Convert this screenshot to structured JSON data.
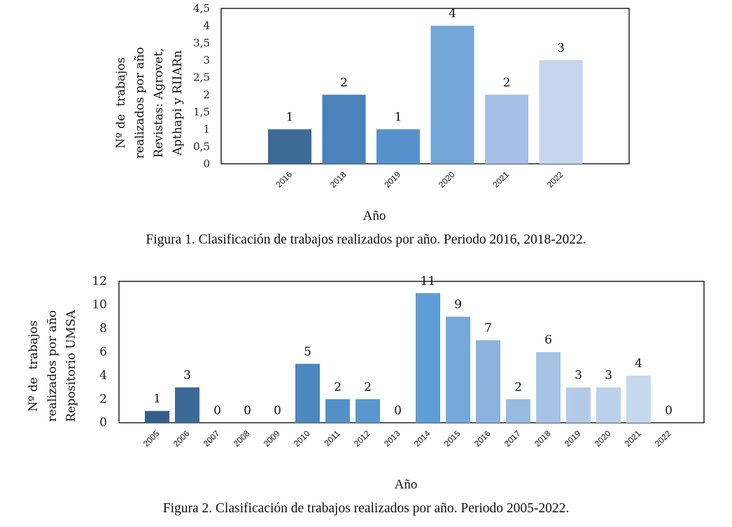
{
  "chart_data": [
    {
      "type": "bar",
      "title": "",
      "caption": "Figura 1. Clasificación de trabajos realizados por año. Periodo 2016, 2018-2022.",
      "xlabel": "Año",
      "ylabel": "Nº de  trabajos\nrealizados por año\nRevistas: Agrovet,\nApthapi y RIIARn",
      "categories": [
        "2016",
        "2018",
        "2019",
        "2020",
        "2021",
        "2022"
      ],
      "values": [
        1,
        2,
        1,
        4,
        2,
        3
      ],
      "data_labels": [
        "1",
        "2",
        "1",
        "4",
        "2",
        "3"
      ],
      "ylim": [
        0,
        4.5
      ],
      "yticks": [
        0,
        0.5,
        1,
        1.5,
        2,
        2.5,
        3,
        3.5,
        4,
        4.5
      ],
      "ytick_labels": [
        "0",
        "0,5",
        "1",
        "1,5",
        "2",
        "2,5",
        "3",
        "3,5",
        "4",
        "4,5"
      ],
      "grid": false,
      "legend": "none",
      "colors": [
        "#3d6a97",
        "#4a82ba",
        "#5791cb",
        "#75a6d8",
        "#a4c0e6",
        "#c5d6ee"
      ]
    },
    {
      "type": "bar",
      "title": "",
      "caption": "Figura 2. Clasificación de trabajos realizados por año. Periodo 2005-2022.",
      "xlabel": "Año",
      "ylabel": "Nº de  trabajos\nrealizados por año\nRepositorio UMSA",
      "categories": [
        "2005",
        "2006",
        "2007",
        "2008",
        "2009",
        "2010",
        "2011",
        "2012",
        "2013",
        "2014",
        "2015",
        "2016",
        "2017",
        "2018",
        "2019",
        "2020",
        "2021",
        "2022"
      ],
      "values": [
        1,
        3,
        0,
        0,
        0,
        5,
        2,
        2,
        0,
        11,
        9,
        7,
        2,
        6,
        3,
        3,
        4,
        0
      ],
      "data_labels": [
        "1",
        "3",
        "0",
        "0",
        "0",
        "5",
        "2",
        "2",
        "0",
        "11",
        "9",
        "7",
        "2",
        "6",
        "3",
        "3",
        "4",
        "0"
      ],
      "ylim": [
        0,
        12
      ],
      "yticks": [
        0,
        2,
        4,
        6,
        8,
        10,
        12
      ],
      "ytick_labels": [
        "0",
        "2",
        "4",
        "6",
        "8",
        "10",
        "12"
      ],
      "grid": false,
      "legend": "none",
      "colors": [
        "#345f8a",
        "#3b6a98",
        "#3f72a3",
        "#4479ad",
        "#4880b6",
        "#4c87bf",
        "#5390c8",
        "#5a97cf",
        "#5f9bd2",
        "#5f9dd6",
        "#77a8da",
        "#8bb3dd",
        "#97bae0",
        "#a6c3e5",
        "#b3cbe9",
        "#bbd1eb",
        "#c6d8ee",
        "#d0def1"
      ]
    }
  ]
}
